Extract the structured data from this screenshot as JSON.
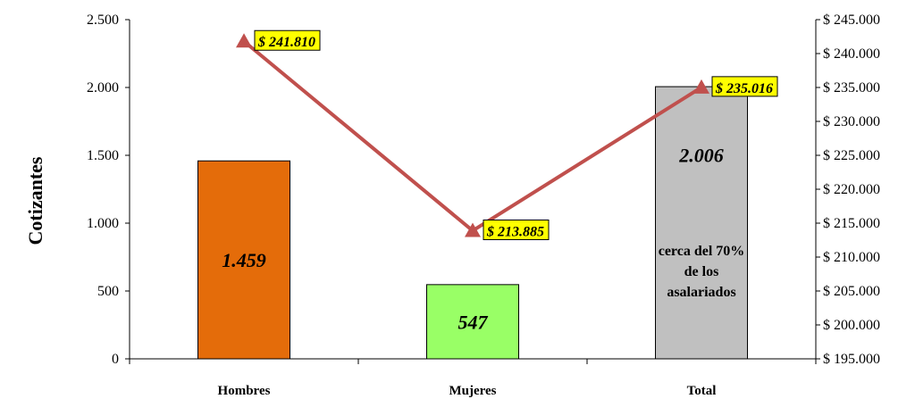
{
  "chart_data": {
    "type": "bar+line",
    "title": "",
    "ylabel": "Cotizantes",
    "categories": [
      "Hombres",
      "Mujeres",
      "Total"
    ],
    "series": [
      {
        "type": "bar",
        "axis": "left",
        "values": [
          1459,
          547,
          2006
        ],
        "labels": [
          "1.459",
          "547",
          "2.006"
        ],
        "colors": [
          "#E46C0A",
          "#99FF66",
          "#C0C0C0"
        ]
      },
      {
        "type": "line",
        "axis": "right",
        "values": [
          241810,
          213885,
          235016
        ],
        "labels": [
          "$ 241.810",
          "$ 213.885",
          "$ 235.016"
        ],
        "color": "#C0504D",
        "marker": "triangle",
        "label_bg": "#FFFF00"
      }
    ],
    "y_left": {
      "ylim": [
        0,
        2500
      ],
      "ticks": [
        0,
        500,
        1000,
        1500,
        2000,
        2500
      ],
      "tick_labels": [
        "0",
        "500",
        "1.000",
        "1.500",
        "2.000",
        "2.500"
      ]
    },
    "y_right": {
      "ylim": [
        195000,
        245000
      ],
      "ticks": [
        195000,
        200000,
        205000,
        210000,
        215000,
        220000,
        225000,
        230000,
        235000,
        240000,
        245000
      ],
      "tick_labels": [
        "$ 195.000",
        "$ 200.000",
        "$ 205.000",
        "$ 210.000",
        "$ 215.000",
        "$ 220.000",
        "$ 225.000",
        "$ 230.000",
        "$ 235.000",
        "$ 240.000",
        "$ 245.000"
      ]
    },
    "annotations": [
      {
        "category": "Total",
        "lines": [
          "cerca del 70%",
          "de los",
          "asalariados"
        ]
      }
    ],
    "grid": false,
    "legend": "none"
  }
}
